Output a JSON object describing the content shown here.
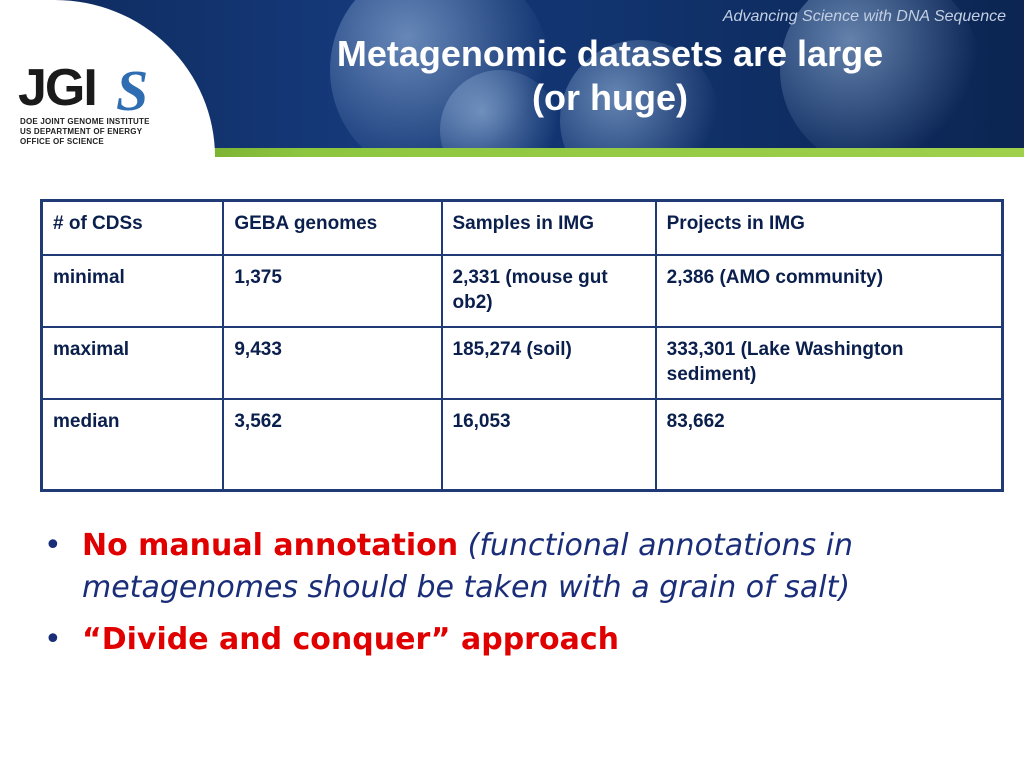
{
  "header": {
    "tagline": "Advancing Science with DNA Sequence",
    "title_line1": "Metagenomic datasets are large",
    "title_line2": "(or huge)",
    "logo": {
      "main": "JGI",
      "s": "S",
      "sub1": "DOE JOINT GENOME INSTITUTE",
      "sub2": "US DEPARTMENT OF ENERGY",
      "sub3": "OFFICE OF SCIENCE"
    }
  },
  "table": {
    "headers": [
      "# of CDSs",
      "GEBA genomes",
      "Samples in IMG",
      "Projects in IMG"
    ],
    "rows": [
      [
        "minimal",
        "1,375",
        "2,331 (mouse gut ob2)",
        "2,386 (AMO community)"
      ],
      [
        "maximal",
        "9,433",
        "185,274 (soil)",
        "333,301 (Lake Washington sediment)"
      ],
      [
        "median",
        "3,562",
        "16,053",
        "83,662"
      ]
    ]
  },
  "bullets": [
    {
      "bullet": "•",
      "bold": "No manual annotation",
      "italic": "(functional annotations in metagenomes should be taken with a grain of salt)"
    },
    {
      "bullet": "•",
      "bold": "“Divide and conquer” approach",
      "italic": ""
    }
  ],
  "colors": {
    "banner": "#15397a",
    "accent_green": "#8dc63f",
    "table_border": "#1f3a75",
    "text_navy": "#1a2d78",
    "emphasis_red": "#e00000"
  }
}
